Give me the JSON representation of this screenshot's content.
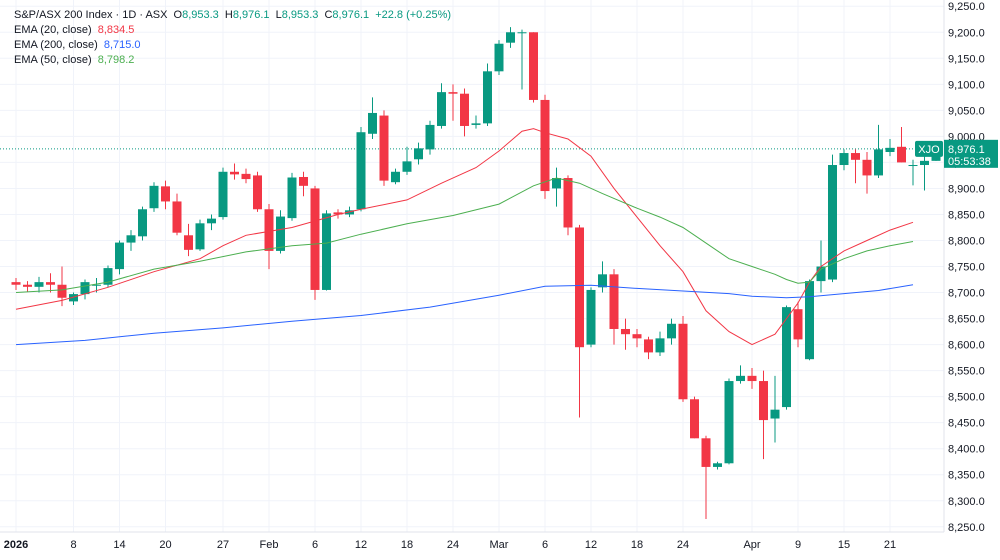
{
  "legend": {
    "title": "S&P/ASX 200 Index · 1D · ASX",
    "o_label": "O",
    "o_value": "8,953.3",
    "h_label": "H",
    "h_value": "8,976.1",
    "l_label": "L",
    "l_value": "8,953.3",
    "c_label": "C",
    "c_value": "8,976.1",
    "change": "+22.8 (+0.25%)",
    "ema20_label": "EMA (20, close)",
    "ema20_value": "8,834.5",
    "ema200_label": "EMA (200, close)",
    "ema200_value": "8,715.0",
    "ema50_label": "EMA (50, close)",
    "ema50_value": "8,798.2"
  },
  "colors": {
    "up": "#089981",
    "down": "#f23645",
    "ema20": "#f23645",
    "ema200": "#2962ff",
    "ema50": "#4caf50",
    "text": "#131722",
    "price_line": "#089981"
  },
  "price_tag": {
    "symbol": "XJO",
    "price": "8,976.1",
    "countdown": "05:53:38"
  },
  "chart_data": {
    "type": "candlestick",
    "y_ticks": [
      "9,250.0",
      "9,200.0",
      "9,150.0",
      "9,100.0",
      "9,050.0",
      "9,000.0",
      "8,950.0",
      "8,900.0",
      "8,850.0",
      "8,800.0",
      "8,750.0",
      "8,700.0",
      "8,650.0",
      "8,600.0",
      "8,550.0",
      "8,500.0",
      "8,450.0",
      "8,400.0",
      "8,350.0",
      "8,300.0",
      "8,250.0"
    ],
    "ylim": [
      8240,
      9262
    ],
    "x_ticks": [
      {
        "label": "2026",
        "index": 0,
        "bold": true
      },
      {
        "label": "8",
        "index": 5
      },
      {
        "label": "14",
        "index": 9
      },
      {
        "label": "20",
        "index": 13
      },
      {
        "label": "27",
        "index": 18
      },
      {
        "label": "Feb",
        "index": 22
      },
      {
        "label": "6",
        "index": 26
      },
      {
        "label": "12",
        "index": 30
      },
      {
        "label": "18",
        "index": 34
      },
      {
        "label": "24",
        "index": 38
      },
      {
        "label": "Mar",
        "index": 42
      },
      {
        "label": "6",
        "index": 46
      },
      {
        "label": "12",
        "index": 50
      },
      {
        "label": "18",
        "index": 54
      },
      {
        "label": "24",
        "index": 58
      },
      {
        "label": "Apr",
        "index": 64
      },
      {
        "label": "9",
        "index": 68
      },
      {
        "label": "15",
        "index": 72
      },
      {
        "label": "21",
        "index": 76
      }
    ],
    "candles": [
      {
        "o": 8720,
        "h": 8728,
        "l": 8705,
        "c": 8715
      },
      {
        "o": 8715,
        "h": 8722,
        "l": 8702,
        "c": 8711
      },
      {
        "o": 8711,
        "h": 8730,
        "l": 8700,
        "c": 8720
      },
      {
        "o": 8720,
        "h": 8737,
        "l": 8700,
        "c": 8715
      },
      {
        "o": 8715,
        "h": 8750,
        "l": 8674,
        "c": 8690
      },
      {
        "o": 8683,
        "h": 8700,
        "l": 8676,
        "c": 8697
      },
      {
        "o": 8697,
        "h": 8725,
        "l": 8687,
        "c": 8720
      },
      {
        "o": 8715,
        "h": 8728,
        "l": 8700,
        "c": 8715
      },
      {
        "o": 8715,
        "h": 8752,
        "l": 8710,
        "c": 8747
      },
      {
        "o": 8745,
        "h": 8800,
        "l": 8735,
        "c": 8796
      },
      {
        "o": 8796,
        "h": 8820,
        "l": 8780,
        "c": 8810
      },
      {
        "o": 8808,
        "h": 8865,
        "l": 8800,
        "c": 8860
      },
      {
        "o": 8862,
        "h": 8912,
        "l": 8855,
        "c": 8905
      },
      {
        "o": 8904,
        "h": 8915,
        "l": 8860,
        "c": 8875
      },
      {
        "o": 8875,
        "h": 8890,
        "l": 8810,
        "c": 8815
      },
      {
        "o": 8810,
        "h": 8832,
        "l": 8770,
        "c": 8782
      },
      {
        "o": 8783,
        "h": 8840,
        "l": 8780,
        "c": 8833
      },
      {
        "o": 8833,
        "h": 8850,
        "l": 8820,
        "c": 8842
      },
      {
        "o": 8845,
        "h": 8940,
        "l": 8840,
        "c": 8932
      },
      {
        "o": 8932,
        "h": 8948,
        "l": 8917,
        "c": 8927
      },
      {
        "o": 8928,
        "h": 8938,
        "l": 8910,
        "c": 8918
      },
      {
        "o": 8925,
        "h": 8932,
        "l": 8855,
        "c": 8860
      },
      {
        "o": 8860,
        "h": 8870,
        "l": 8745,
        "c": 8780
      },
      {
        "o": 8780,
        "h": 8858,
        "l": 8775,
        "c": 8846
      },
      {
        "o": 8843,
        "h": 8930,
        "l": 8838,
        "c": 8921
      },
      {
        "o": 8922,
        "h": 8932,
        "l": 8885,
        "c": 8905
      },
      {
        "o": 8900,
        "h": 8905,
        "l": 8686,
        "c": 8705
      },
      {
        "o": 8705,
        "h": 8858,
        "l": 8704,
        "c": 8852
      },
      {
        "o": 8854,
        "h": 8860,
        "l": 8842,
        "c": 8850
      },
      {
        "o": 8850,
        "h": 8865,
        "l": 8845,
        "c": 8858
      },
      {
        "o": 8860,
        "h": 9018,
        "l": 8856,
        "c": 9008
      },
      {
        "o": 9005,
        "h": 9075,
        "l": 8995,
        "c": 9045
      },
      {
        "o": 9040,
        "h": 9050,
        "l": 8905,
        "c": 8915
      },
      {
        "o": 8912,
        "h": 8938,
        "l": 8908,
        "c": 8932
      },
      {
        "o": 8932,
        "h": 8980,
        "l": 8926,
        "c": 8952
      },
      {
        "o": 8956,
        "h": 8988,
        "l": 8946,
        "c": 8977
      },
      {
        "o": 8975,
        "h": 9030,
        "l": 8965,
        "c": 9022
      },
      {
        "o": 9020,
        "h": 9102,
        "l": 9015,
        "c": 9085
      },
      {
        "o": 9085,
        "h": 9100,
        "l": 9030,
        "c": 9082
      },
      {
        "o": 9082,
        "h": 9092,
        "l": 9000,
        "c": 9020
      },
      {
        "o": 9022,
        "h": 9040,
        "l": 9015,
        "c": 9025
      },
      {
        "o": 9025,
        "h": 9140,
        "l": 9020,
        "c": 9125
      },
      {
        "o": 9125,
        "h": 9185,
        "l": 9118,
        "c": 9178
      },
      {
        "o": 9180,
        "h": 9210,
        "l": 9170,
        "c": 9200
      },
      {
        "o": 9200,
        "h": 9205,
        "l": 9090,
        "c": 9200
      },
      {
        "o": 9200,
        "h": 9200,
        "l": 9065,
        "c": 9070
      },
      {
        "o": 9070,
        "h": 9080,
        "l": 8880,
        "c": 8895
      },
      {
        "o": 8900,
        "h": 8940,
        "l": 8865,
        "c": 8920
      },
      {
        "o": 8920,
        "h": 8925,
        "l": 8810,
        "c": 8825
      },
      {
        "o": 8825,
        "h": 8830,
        "l": 8460,
        "c": 8595
      },
      {
        "o": 8600,
        "h": 8710,
        "l": 8595,
        "c": 8705
      },
      {
        "o": 8710,
        "h": 8760,
        "l": 8700,
        "c": 8735
      },
      {
        "o": 8735,
        "h": 8745,
        "l": 8600,
        "c": 8630
      },
      {
        "o": 8630,
        "h": 8650,
        "l": 8590,
        "c": 8620
      },
      {
        "o": 8620,
        "h": 8630,
        "l": 8595,
        "c": 8612
      },
      {
        "o": 8610,
        "h": 8615,
        "l": 8572,
        "c": 8585
      },
      {
        "o": 8585,
        "h": 8625,
        "l": 8578,
        "c": 8612
      },
      {
        "o": 8612,
        "h": 8650,
        "l": 8600,
        "c": 8640
      },
      {
        "o": 8640,
        "h": 8655,
        "l": 8490,
        "c": 8495
      },
      {
        "o": 8495,
        "h": 8500,
        "l": 8420,
        "c": 8420
      },
      {
        "o": 8420,
        "h": 8425,
        "l": 8265,
        "c": 8365
      },
      {
        "o": 8365,
        "h": 8375,
        "l": 8360,
        "c": 8372
      },
      {
        "o": 8372,
        "h": 8535,
        "l": 8370,
        "c": 8530
      },
      {
        "o": 8530,
        "h": 8560,
        "l": 8525,
        "c": 8540
      },
      {
        "o": 8540,
        "h": 8555,
        "l": 8515,
        "c": 8530
      },
      {
        "o": 8530,
        "h": 8550,
        "l": 8380,
        "c": 8455
      },
      {
        "o": 8458,
        "h": 8540,
        "l": 8412,
        "c": 8475
      },
      {
        "o": 8480,
        "h": 8675,
        "l": 8475,
        "c": 8672
      },
      {
        "o": 8668,
        "h": 8682,
        "l": 8595,
        "c": 8610
      },
      {
        "o": 8572,
        "h": 8725,
        "l": 8570,
        "c": 8722
      },
      {
        "o": 8722,
        "h": 8800,
        "l": 8700,
        "c": 8750
      },
      {
        "o": 8725,
        "h": 8965,
        "l": 8720,
        "c": 8945
      },
      {
        "o": 8945,
        "h": 8975,
        "l": 8935,
        "c": 8968
      },
      {
        "o": 8968,
        "h": 8975,
        "l": 8910,
        "c": 8955
      },
      {
        "o": 8955,
        "h": 8970,
        "l": 8890,
        "c": 8925
      },
      {
        "o": 8925,
        "h": 9022,
        "l": 8920,
        "c": 8975
      },
      {
        "o": 8970,
        "h": 8995,
        "l": 8962,
        "c": 8978
      },
      {
        "o": 8980,
        "h": 9018,
        "l": 8950,
        "c": 8950
      },
      {
        "o": 8945,
        "h": 8955,
        "l": 8906,
        "c": 8945
      },
      {
        "o": 8945,
        "h": 8975,
        "l": 8896,
        "c": 8953
      },
      {
        "o": 8953,
        "h": 8976,
        "l": 8953,
        "c": 8976
      }
    ],
    "series": [
      {
        "name": "EMA (20, close)",
        "color_key": "ema20",
        "points": [
          [
            0,
            8668
          ],
          [
            4,
            8685
          ],
          [
            8,
            8710
          ],
          [
            12,
            8740
          ],
          [
            16,
            8765
          ],
          [
            18,
            8790
          ],
          [
            20,
            8810
          ],
          [
            24,
            8825
          ],
          [
            28,
            8850
          ],
          [
            30,
            8860
          ],
          [
            34,
            8878
          ],
          [
            37,
            8910
          ],
          [
            40,
            8940
          ],
          [
            42,
            8972
          ],
          [
            44,
            9010
          ],
          [
            45,
            9015
          ],
          [
            46,
            9007
          ],
          [
            48,
            8995
          ],
          [
            50,
            8962
          ],
          [
            52,
            8900
          ],
          [
            54,
            8845
          ],
          [
            56,
            8790
          ],
          [
            58,
            8740
          ],
          [
            60,
            8665
          ],
          [
            62,
            8625
          ],
          [
            64,
            8600
          ],
          [
            66,
            8620
          ],
          [
            68,
            8680
          ],
          [
            69,
            8720
          ],
          [
            70,
            8750
          ],
          [
            72,
            8780
          ],
          [
            74,
            8800
          ],
          [
            76,
            8820
          ],
          [
            78,
            8835
          ]
        ]
      },
      {
        "name": "EMA (50, close)",
        "color_key": "ema50",
        "points": [
          [
            0,
            8700
          ],
          [
            4,
            8705
          ],
          [
            8,
            8720
          ],
          [
            12,
            8745
          ],
          [
            16,
            8760
          ],
          [
            20,
            8778
          ],
          [
            24,
            8790
          ],
          [
            27,
            8795
          ],
          [
            30,
            8812
          ],
          [
            34,
            8832
          ],
          [
            38,
            8848
          ],
          [
            42,
            8870
          ],
          [
            45,
            8905
          ],
          [
            47,
            8920
          ],
          [
            49,
            8910
          ],
          [
            51,
            8890
          ],
          [
            54,
            8862
          ],
          [
            56,
            8845
          ],
          [
            58,
            8825
          ],
          [
            60,
            8795
          ],
          [
            62,
            8765
          ],
          [
            64,
            8750
          ],
          [
            66,
            8735
          ],
          [
            67,
            8725
          ],
          [
            68,
            8718
          ],
          [
            69,
            8720
          ],
          [
            70,
            8745
          ],
          [
            72,
            8765
          ],
          [
            74,
            8780
          ],
          [
            76,
            8790
          ],
          [
            78,
            8798
          ]
        ]
      },
      {
        "name": "EMA (200, close)",
        "color_key": "ema200",
        "points": [
          [
            0,
            8600
          ],
          [
            6,
            8608
          ],
          [
            12,
            8622
          ],
          [
            18,
            8632
          ],
          [
            24,
            8645
          ],
          [
            30,
            8656
          ],
          [
            36,
            8672
          ],
          [
            42,
            8695
          ],
          [
            46,
            8712
          ],
          [
            50,
            8714
          ],
          [
            54,
            8708
          ],
          [
            58,
            8703
          ],
          [
            62,
            8698
          ],
          [
            64,
            8693
          ],
          [
            67,
            8690
          ],
          [
            69,
            8692
          ],
          [
            72,
            8698
          ],
          [
            75,
            8704
          ],
          [
            78,
            8715
          ]
        ]
      }
    ],
    "last_price": 8976.1
  }
}
